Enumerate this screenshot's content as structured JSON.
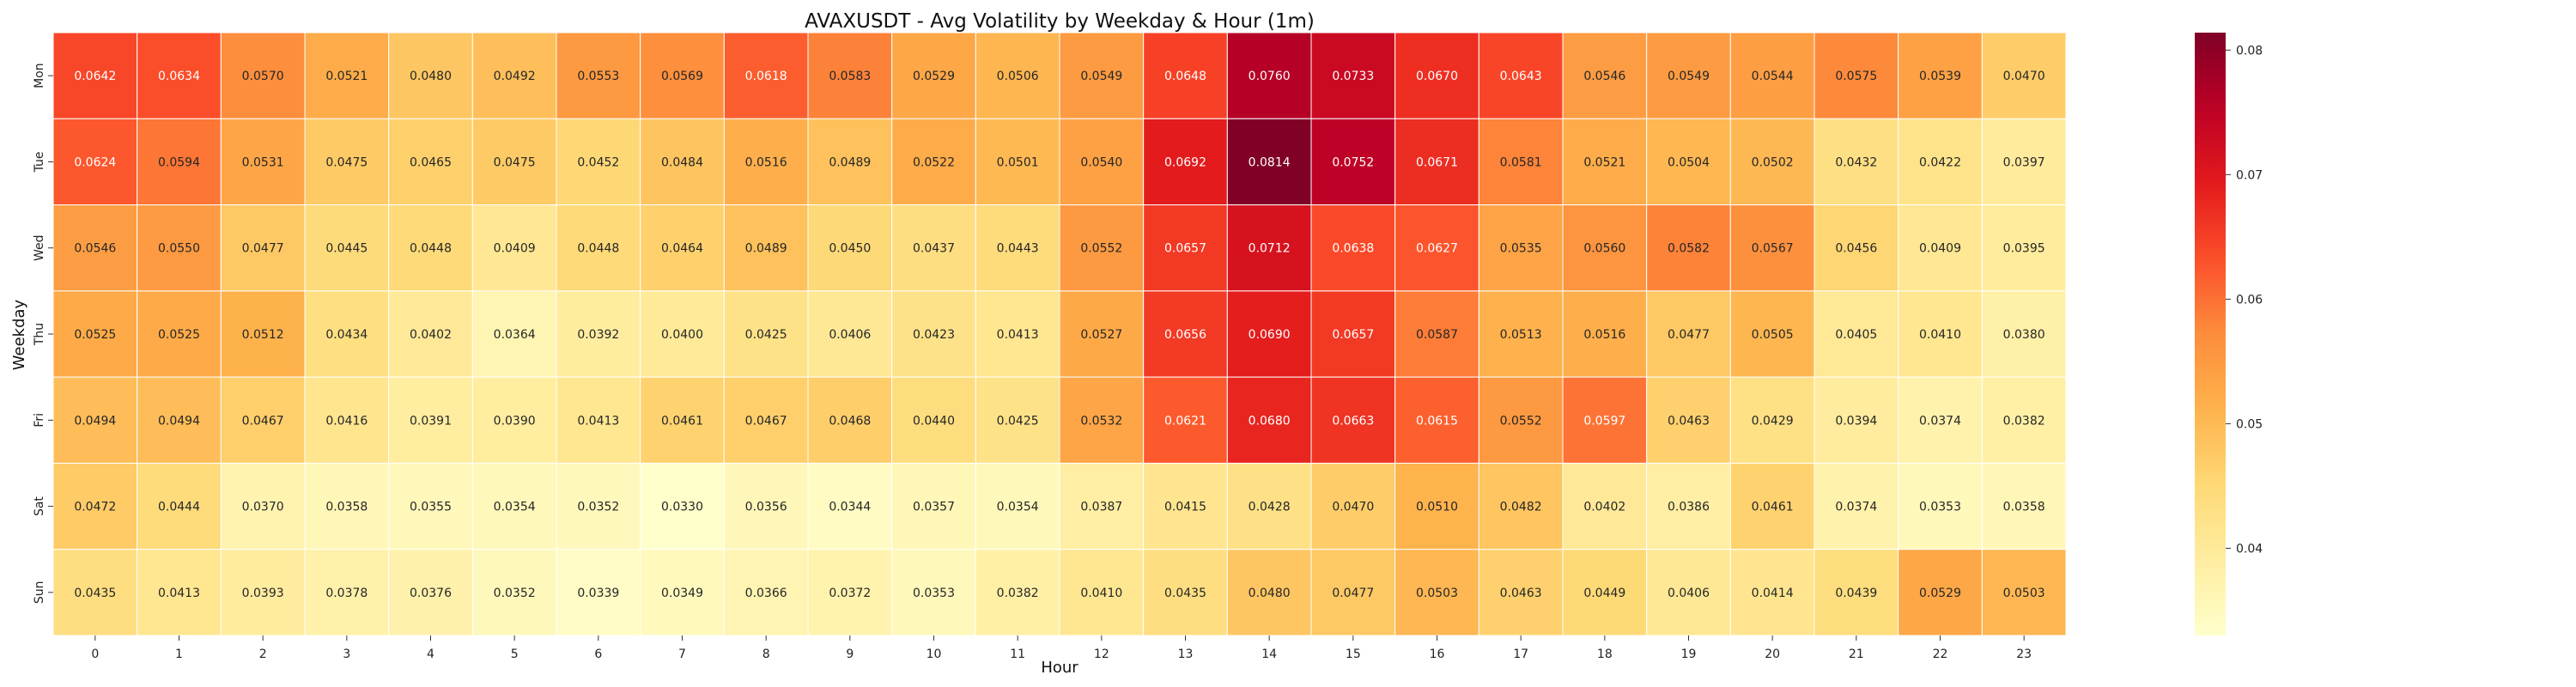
{
  "chart_data": {
    "type": "heatmap",
    "title": "AVAXUSDT - Avg Volatility by Weekday & Hour (1m)",
    "xlabel": "Hour",
    "ylabel": "Weekday",
    "x": [
      "0",
      "1",
      "2",
      "3",
      "4",
      "5",
      "6",
      "7",
      "8",
      "9",
      "10",
      "11",
      "12",
      "13",
      "14",
      "15",
      "16",
      "17",
      "18",
      "19",
      "20",
      "21",
      "22",
      "23"
    ],
    "y": [
      "Mon",
      "Tue",
      "Wed",
      "Thu",
      "Fri",
      "Sat",
      "Sun"
    ],
    "values": [
      [
        0.0642,
        0.0634,
        0.057,
        0.0521,
        0.048,
        0.0492,
        0.0553,
        0.0569,
        0.0618,
        0.0583,
        0.0529,
        0.0506,
        0.0549,
        0.0648,
        0.076,
        0.0733,
        0.067,
        0.0643,
        0.0546,
        0.0549,
        0.0544,
        0.0575,
        0.0539,
        0.047
      ],
      [
        0.0624,
        0.0594,
        0.0531,
        0.0475,
        0.0465,
        0.0475,
        0.0452,
        0.0484,
        0.0516,
        0.0489,
        0.0522,
        0.0501,
        0.054,
        0.0692,
        0.0814,
        0.0752,
        0.0671,
        0.0581,
        0.0521,
        0.0504,
        0.0502,
        0.0432,
        0.0422,
        0.0397
      ],
      [
        0.0546,
        0.055,
        0.0477,
        0.0445,
        0.0448,
        0.0409,
        0.0448,
        0.0464,
        0.0489,
        0.045,
        0.0437,
        0.0443,
        0.0552,
        0.0657,
        0.0712,
        0.0638,
        0.0627,
        0.0535,
        0.056,
        0.0582,
        0.0567,
        0.0456,
        0.0409,
        0.0395
      ],
      [
        0.0525,
        0.0525,
        0.0512,
        0.0434,
        0.0402,
        0.0364,
        0.0392,
        0.04,
        0.0425,
        0.0406,
        0.0423,
        0.0413,
        0.0527,
        0.0656,
        0.069,
        0.0657,
        0.0587,
        0.0513,
        0.0516,
        0.0477,
        0.0505,
        0.0405,
        0.041,
        0.038
      ],
      [
        0.0494,
        0.0494,
        0.0467,
        0.0416,
        0.0391,
        0.039,
        0.0413,
        0.0461,
        0.0467,
        0.0468,
        0.044,
        0.0425,
        0.0532,
        0.0621,
        0.068,
        0.0663,
        0.0615,
        0.0552,
        0.0597,
        0.0463,
        0.0429,
        0.0394,
        0.0374,
        0.0382
      ],
      [
        0.0472,
        0.0444,
        0.037,
        0.0358,
        0.0355,
        0.0354,
        0.0352,
        0.033,
        0.0356,
        0.0344,
        0.0357,
        0.0354,
        0.0387,
        0.0415,
        0.0428,
        0.047,
        0.051,
        0.0482,
        0.0402,
        0.0386,
        0.0461,
        0.0374,
        0.0353,
        0.0358
      ],
      [
        0.0435,
        0.0413,
        0.0393,
        0.0378,
        0.0376,
        0.0352,
        0.0339,
        0.0349,
        0.0366,
        0.0372,
        0.0353,
        0.0382,
        0.041,
        0.0435,
        0.048,
        0.0477,
        0.0503,
        0.0463,
        0.0449,
        0.0406,
        0.0414,
        0.0439,
        0.0529,
        0.0503
      ]
    ],
    "value_format": "4 decimals",
    "colorbar": {
      "ticks": [
        "0.04",
        "0.05",
        "0.06",
        "0.07",
        "0.08"
      ],
      "min": 0.033,
      "max": 0.0814
    },
    "colormap": "YlOrRd",
    "grid": false,
    "colors": {
      "low": "#ffffcc",
      "mid": "#fd8d3c",
      "high": "#800026"
    }
  }
}
